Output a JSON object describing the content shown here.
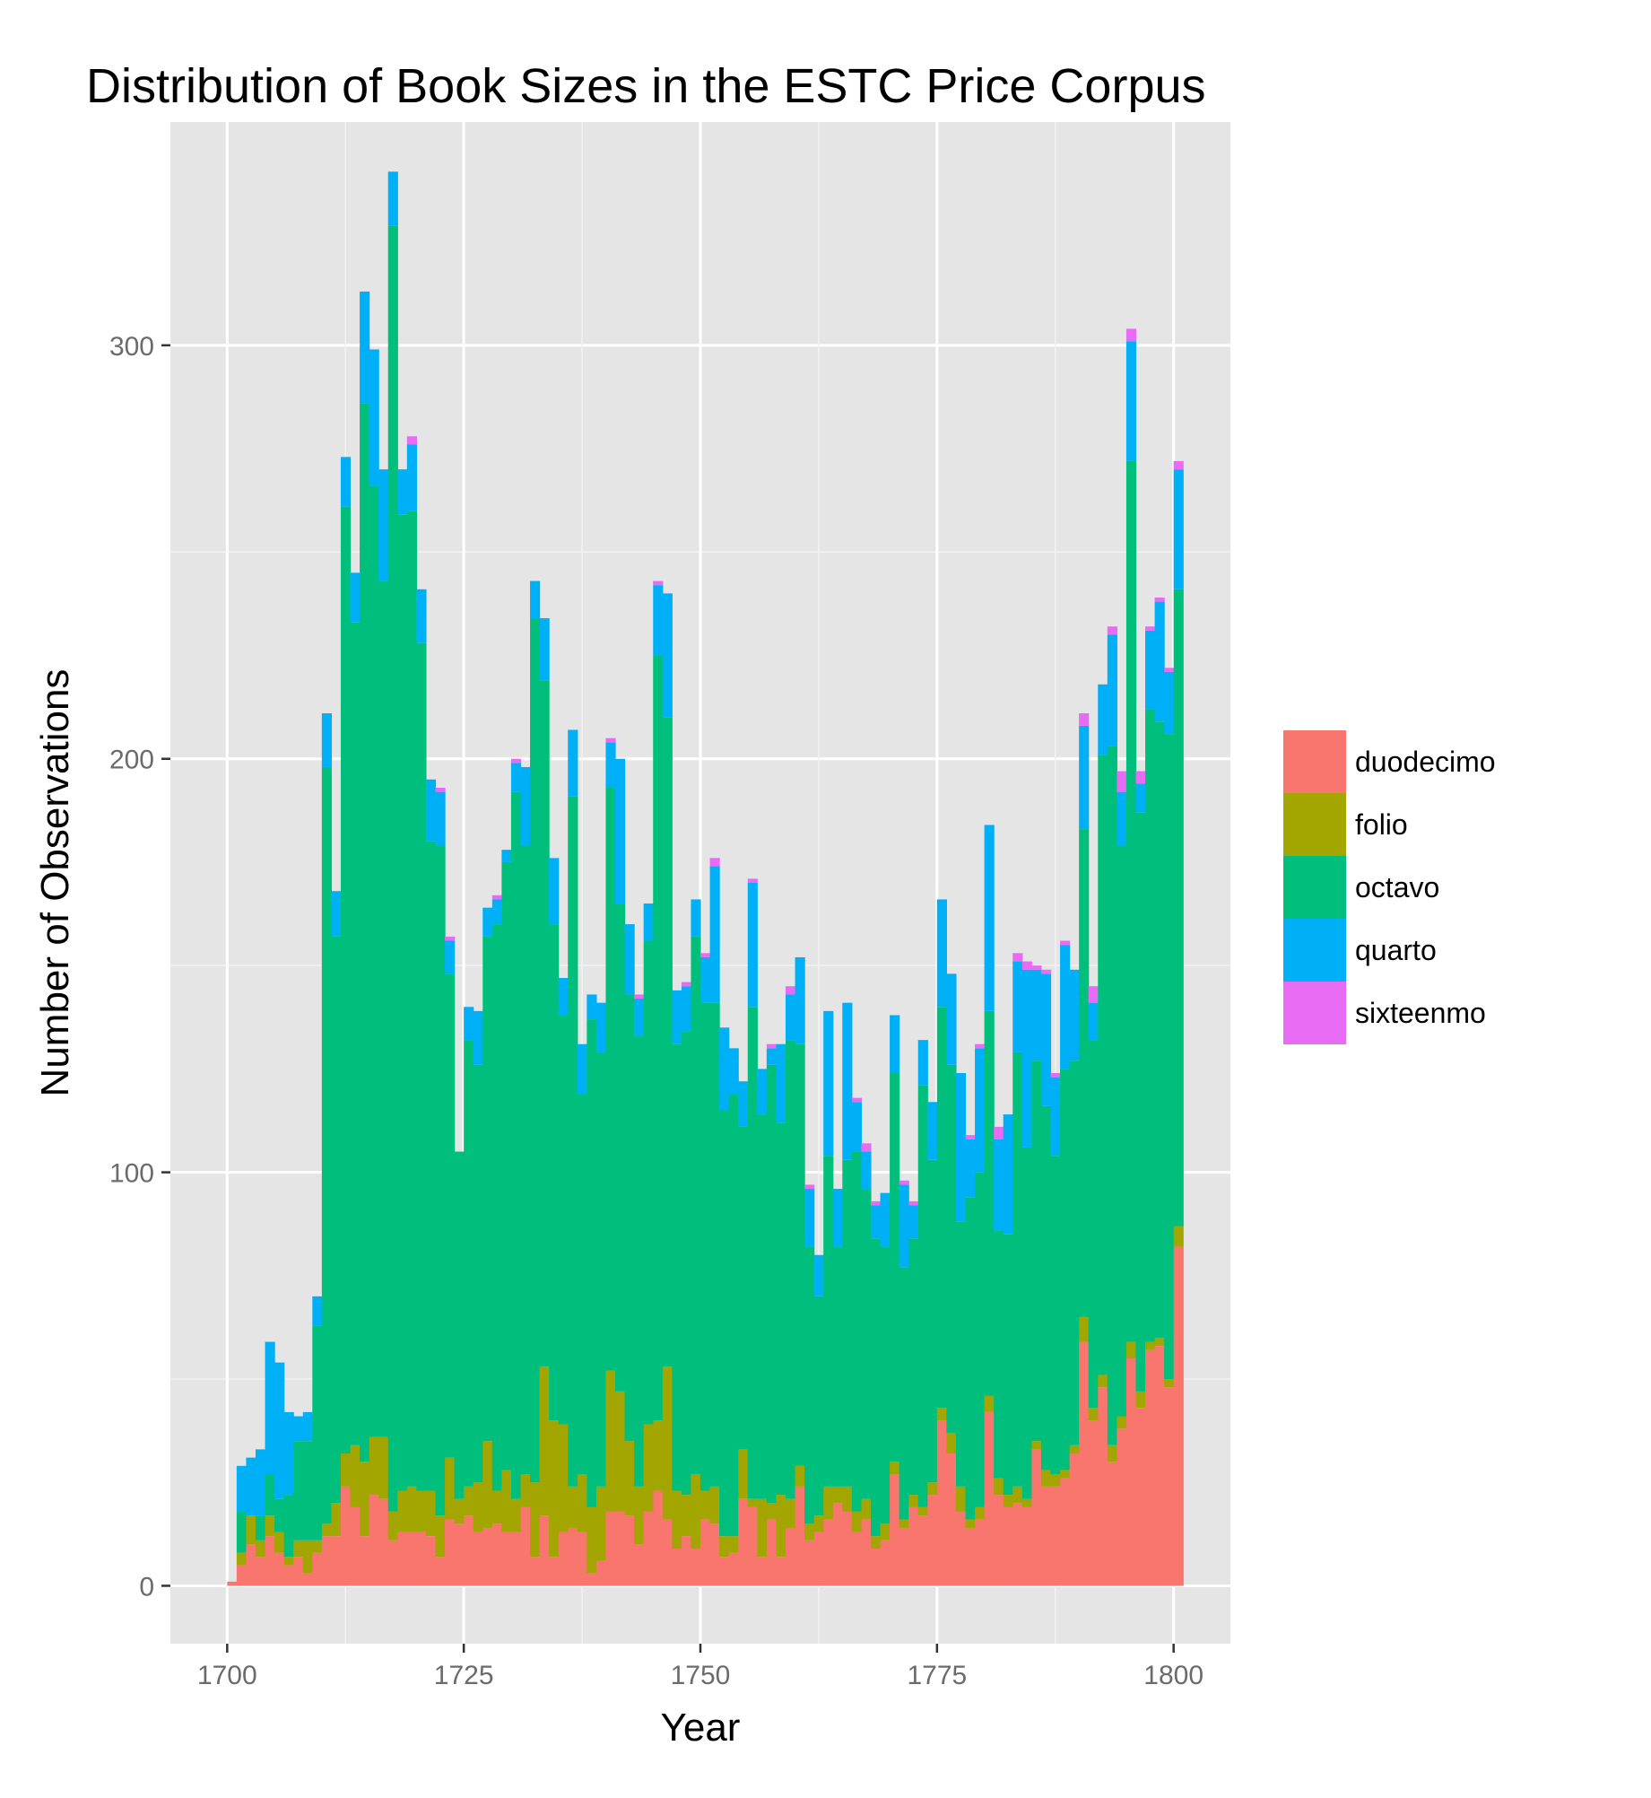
{
  "chart_data": {
    "type": "bar",
    "stacked": true,
    "title": "Distribution of Book Sizes in the ESTC Price Corpus",
    "xlabel": "Year",
    "ylabel": "Number of Observations",
    "xlim": [
      1694,
      1806
    ],
    "ylim": [
      -14,
      354
    ],
    "x_ticks": [
      1700,
      1725,
      1750,
      1775,
      1800
    ],
    "y_ticks": [
      0,
      100,
      200,
      300
    ],
    "grid": true,
    "legend_position": "right",
    "colors": {
      "duodecimo": "#F8766D",
      "folio": "#A3A500",
      "octavo": "#00BF7D",
      "quarto": "#00B0F6",
      "sixteenmo": "#E76BF3"
    },
    "x": [
      1700,
      1701,
      1702,
      1703,
      1704,
      1705,
      1706,
      1707,
      1708,
      1709,
      1710,
      1711,
      1712,
      1713,
      1714,
      1715,
      1716,
      1717,
      1718,
      1719,
      1720,
      1721,
      1722,
      1723,
      1724,
      1725,
      1726,
      1727,
      1728,
      1729,
      1730,
      1731,
      1732,
      1733,
      1734,
      1735,
      1736,
      1737,
      1738,
      1739,
      1740,
      1741,
      1742,
      1743,
      1744,
      1745,
      1746,
      1747,
      1748,
      1749,
      1750,
      1751,
      1752,
      1753,
      1754,
      1755,
      1756,
      1757,
      1758,
      1759,
      1760,
      1761,
      1762,
      1763,
      1764,
      1765,
      1766,
      1767,
      1768,
      1769,
      1770,
      1771,
      1772,
      1773,
      1774,
      1775,
      1776,
      1777,
      1778,
      1779,
      1780,
      1781,
      1782,
      1783,
      1784,
      1785,
      1786,
      1787,
      1788,
      1789,
      1790,
      1791,
      1792,
      1793,
      1794,
      1795,
      1796,
      1797,
      1798,
      1799,
      1800
    ],
    "series": [
      {
        "name": "duodecimo",
        "values": [
          1,
          5,
          10,
          7,
          12,
          8,
          5,
          7,
          3,
          8,
          12,
          12,
          24,
          19,
          12,
          22,
          21,
          11,
          13,
          13,
          13,
          12,
          7,
          16,
          15,
          17,
          13,
          14,
          15,
          13,
          13,
          19,
          7,
          17,
          7,
          13,
          14,
          13,
          3,
          6,
          18,
          18,
          17,
          10,
          18,
          23,
          16,
          9,
          12,
          9,
          16,
          15,
          7,
          8,
          21,
          19,
          7,
          16,
          7,
          14,
          24,
          11,
          13,
          16,
          20,
          18,
          13,
          16,
          9,
          11,
          27,
          14,
          19,
          17,
          22,
          40,
          32,
          18,
          14,
          16,
          42,
          22,
          19,
          20,
          19,
          33,
          24,
          24,
          26,
          32,
          59,
          40,
          48,
          30,
          38,
          55,
          43,
          57,
          58,
          48,
          82
        ]
      },
      {
        "name": "folio",
        "values": [
          0,
          3,
          7,
          4,
          5,
          5,
          2,
          4,
          8,
          3,
          3,
          8,
          8,
          15,
          18,
          14,
          15,
          7,
          10,
          11,
          10,
          11,
          10,
          15,
          6,
          7,
          12,
          21,
          8,
          15,
          8,
          8,
          18,
          36,
          33,
          26,
          10,
          14,
          16,
          18,
          34,
          29,
          18,
          14,
          21,
          17,
          37,
          14,
          10,
          18,
          7,
          9,
          5,
          4,
          12,
          2,
          14,
          4,
          15,
          7,
          5,
          4,
          4,
          8,
          4,
          6,
          5,
          5,
          3,
          4,
          3,
          2,
          3,
          2,
          3,
          3,
          5,
          6,
          2,
          3,
          4,
          4,
          3,
          4,
          2,
          2,
          4,
          3,
          2,
          2,
          6,
          3,
          3,
          4,
          3,
          4,
          4,
          2,
          2,
          2,
          5
        ]
      },
      {
        "name": "octavo",
        "values": [
          0,
          10,
          0,
          6,
          10,
          8,
          15,
          24,
          24,
          52,
          183,
          137,
          229,
          199,
          256,
          230,
          207,
          311,
          236,
          236,
          205,
          157,
          162,
          117,
          84,
          108,
          101,
          122,
          137,
          147,
          171,
          152,
          209,
          166,
          120,
          99,
          167,
          92,
          118,
          105,
          141,
          118,
          108,
          109,
          117,
          185,
          157,
          108,
          112,
          130,
          118,
          117,
          103,
          107,
          78,
          119,
          93,
          106,
          90,
          111,
          102,
          67,
          53,
          80,
          58,
          79,
          87,
          75,
          72,
          67,
          94,
          61,
          62,
          102,
          78,
          97,
          89,
          64,
          78,
          81,
          93,
          60,
          63,
          105,
          85,
          92,
          88,
          77,
          97,
          93,
          118,
          89,
          150,
          169,
          138,
          213,
          140,
          153,
          149,
          156,
          154
        ]
      },
      {
        "name": "quarto",
        "values": [
          0,
          11,
          14,
          16,
          32,
          33,
          20,
          6,
          7,
          7,
          13,
          11,
          12,
          12,
          27,
          33,
          27,
          13,
          11,
          16,
          13,
          15,
          13,
          8,
          0,
          8,
          13,
          7,
          6,
          3,
          7,
          19,
          9,
          15,
          16,
          9,
          16,
          12,
          6,
          12,
          11,
          35,
          17,
          9,
          9,
          17,
          30,
          13,
          11,
          9,
          11,
          33,
          20,
          11,
          11,
          30,
          11,
          4,
          19,
          11,
          21,
          14,
          10,
          35,
          14,
          38,
          12,
          9,
          8,
          13,
          14,
          20,
          8,
          11,
          14,
          26,
          22,
          36,
          14,
          30,
          45,
          22,
          29,
          22,
          43,
          22,
          32,
          19,
          30,
          22,
          25,
          9,
          17,
          27,
          13,
          29,
          7,
          19,
          29,
          15,
          29
        ]
      },
      {
        "name": "sixteenmo",
        "values": [
          0,
          0,
          0,
          0,
          0,
          0,
          0,
          0,
          0,
          0,
          0,
          0,
          0,
          0,
          0,
          0,
          0,
          0,
          0,
          2,
          0,
          0,
          1,
          1,
          0,
          0,
          0,
          0,
          1,
          0,
          1,
          0,
          0,
          0,
          0,
          0,
          0,
          0,
          0,
          0,
          1,
          0,
          0,
          1,
          0,
          1,
          0,
          0,
          1,
          0,
          1,
          2,
          0,
          0,
          0,
          1,
          0,
          1,
          0,
          2,
          0,
          1,
          0,
          0,
          0,
          0,
          1,
          2,
          1,
          0,
          0,
          1,
          1,
          0,
          0,
          0,
          0,
          0,
          1,
          1,
          0,
          3,
          0,
          2,
          2,
          1,
          1,
          1,
          1,
          0,
          3,
          4,
          0,
          2,
          5,
          3,
          3,
          1,
          1,
          1,
          2
        ]
      }
    ]
  }
}
